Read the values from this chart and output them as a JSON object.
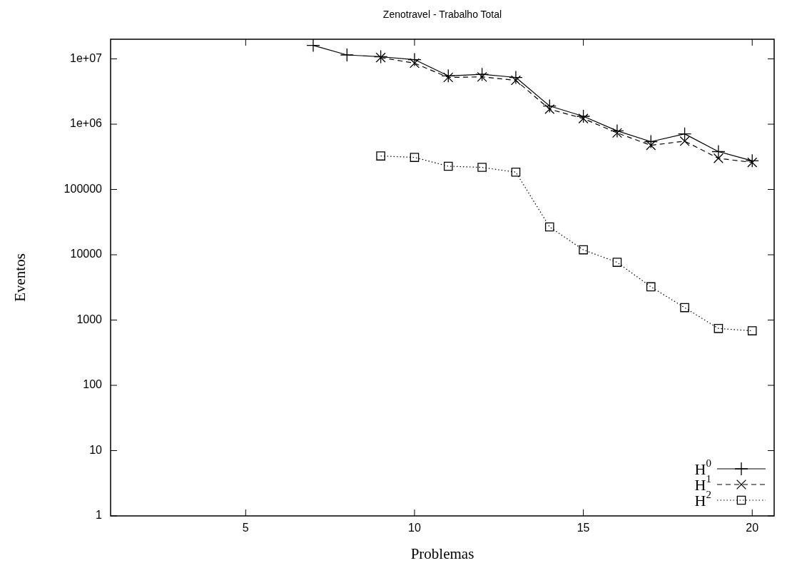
{
  "chart_data": {
    "type": "line",
    "title": "Zenotravel - Trabalho Total",
    "xlabel": "Problemas",
    "ylabel": "Eventos",
    "log": "y",
    "grid": false,
    "legend": "bottom right",
    "xlim": [
      1,
      20.65
    ],
    "xticks": [
      5,
      10,
      15,
      20
    ],
    "ylim": [
      1,
      20000000
    ],
    "yticks": [
      1,
      10,
      100,
      1000,
      10000,
      100000,
      {
        "value": 1000000,
        "label": "1e+06"
      },
      {
        "value": 10000000,
        "label": "1e+07"
      }
    ],
    "series": [
      {
        "name": "H$^{0}$",
        "color": "#000000",
        "marker": "cross",
        "line_style": "solid",
        "x": [
          7,
          8,
          9,
          10,
          11,
          12,
          13,
          14,
          15,
          16,
          17,
          18,
          19,
          20
        ],
        "values": [
          16100000,
          11500000,
          10800000,
          9750000,
          5500000,
          5800000,
          5200000,
          1900000,
          1320000,
          790000,
          540000,
          710000,
          380000,
          275000
        ]
      },
      {
        "name": "H$^{1}$",
        "color": "#000000",
        "marker": "x",
        "line_style": "dashed",
        "x": [
          9,
          10,
          11,
          12,
          13,
          14,
          15,
          16,
          17,
          18,
          19,
          20
        ],
        "values": [
          10500000,
          8600000,
          5200000,
          5300000,
          4700000,
          1700000,
          1220000,
          735000,
          475000,
          550000,
          300000,
          260000
        ]
      },
      {
        "name": "H$^{2}$",
        "color": "#000000",
        "marker": "square",
        "line_style": "dotted",
        "x": [
          9,
          10,
          11,
          12,
          13,
          14,
          15,
          16,
          17,
          18,
          19,
          20
        ],
        "values": [
          326000,
          310000,
          227000,
          218000,
          184000,
          26700,
          11900,
          7660,
          3230,
          1550,
          743,
          684
        ]
      }
    ]
  }
}
